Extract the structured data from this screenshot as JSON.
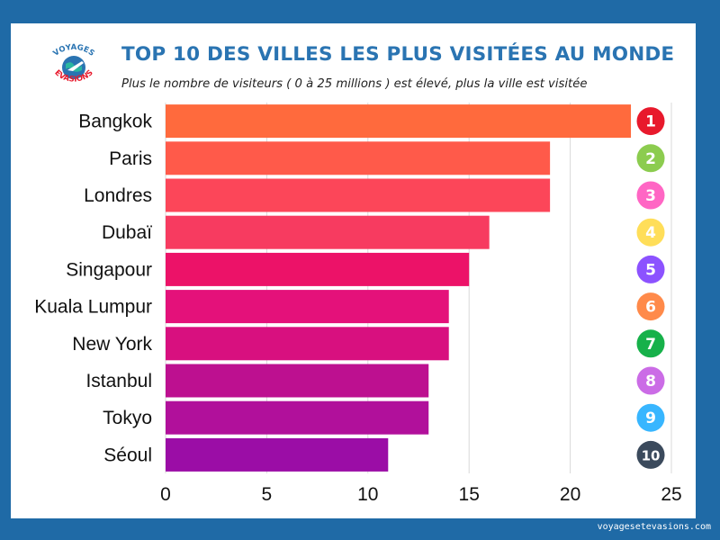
{
  "header": {
    "title": "TOP 10 DES VILLES LES PLUS VISITÉES AU MONDE",
    "subtitle": "Plus le nombre de visiteurs ( 0 à 25 millions ) est élevé, plus la ville est visitée"
  },
  "logo": {
    "text_top": "VOYAGES",
    "text_bottom": "EVASIONS",
    "icon": "globe-airplane-icon"
  },
  "footer": {
    "site": "voyagesetevasions.com"
  },
  "colors": {
    "background": "#1f6aa6",
    "card": "#ffffff",
    "title": "#2a74b2",
    "grid": "#d9d9d9"
  },
  "chart_data": {
    "type": "bar",
    "orientation": "horizontal",
    "categories": [
      "Bangkok",
      "Paris",
      "Londres",
      "Dubaï",
      "Singapour",
      "Kuala Lumpur",
      "New York",
      "Istanbul",
      "Tokyo",
      "Séoul"
    ],
    "values": [
      23,
      19,
      19,
      16,
      15,
      14,
      14,
      13,
      13,
      11
    ],
    "bar_colors": [
      "#ff6a3d",
      "#ff5a4a",
      "#fc4659",
      "#f73b60",
      "#ec1268",
      "#e4117a",
      "#d8107f",
      "#bd1090",
      "#b1109b",
      "#9b0da6"
    ],
    "ranks": [
      "1",
      "2",
      "3",
      "4",
      "5",
      "6",
      "7",
      "8",
      "9",
      "10"
    ],
    "rank_colors": [
      "#e8192c",
      "#8ccc4f",
      "#ff66c4",
      "#ffde59",
      "#8c52ff",
      "#ff8a4a",
      "#17b14a",
      "#cb6ce6",
      "#38b6ff",
      "#3b4a5c"
    ],
    "xlim": [
      0,
      25
    ],
    "xticks": [
      "0",
      "5",
      "10",
      "15",
      "20",
      "25"
    ],
    "grid": true
  }
}
